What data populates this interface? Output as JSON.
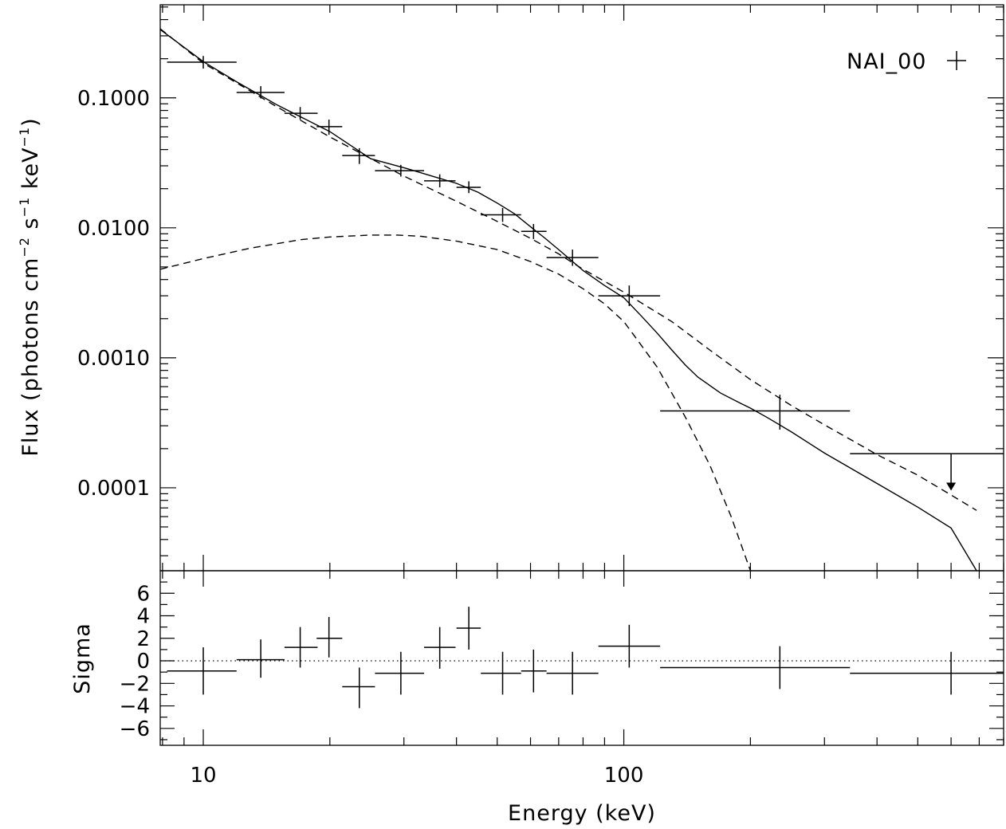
{
  "chart_data": [
    {
      "type": "scatter",
      "panel": "spectrum",
      "ylabel": {
        "pre": "Flux (photons cm",
        "exp1": "−2",
        "mid": " s",
        "exp2": "−1",
        "post": " keV",
        "exp3": "−1",
        "close": ")"
      },
      "xscale": "log",
      "yscale": "log",
      "xlim": [
        7.9,
        800
      ],
      "ylim": [
        2.3e-05,
        0.52
      ],
      "yticks": [
        {
          "value": 0.1,
          "label": "0.1000"
        },
        {
          "value": 0.01,
          "label": "0.0100"
        },
        {
          "value": 0.001,
          "label": "0.0010"
        },
        {
          "value": 0.0001,
          "label": "0.0001"
        }
      ],
      "legend": {
        "label": "NAI_00",
        "position": "top-right"
      },
      "series": [
        {
          "name": "NAI_00",
          "style": "crosses",
          "points": [
            {
              "x": 10.0,
              "xlo": 8.2,
              "xhi": 12.0,
              "y": 0.188,
              "ylo": 0.168,
              "yhi": 0.21
            },
            {
              "x": 13.7,
              "xlo": 12.0,
              "xhi": 15.6,
              "y": 0.11,
              "ylo": 0.099,
              "yhi": 0.123
            },
            {
              "x": 17.0,
              "xlo": 15.6,
              "xhi": 18.7,
              "y": 0.076,
              "ylo": 0.068,
              "yhi": 0.085
            },
            {
              "x": 19.9,
              "xlo": 18.6,
              "xhi": 21.4,
              "y": 0.06,
              "ylo": 0.052,
              "yhi": 0.068
            },
            {
              "x": 23.5,
              "xlo": 21.4,
              "xhi": 25.6,
              "y": 0.036,
              "ylo": 0.031,
              "yhi": 0.041
            },
            {
              "x": 29.5,
              "xlo": 25.6,
              "xhi": 33.5,
              "y": 0.0275,
              "ylo": 0.0248,
              "yhi": 0.0305
            },
            {
              "x": 36.5,
              "xlo": 33.5,
              "xhi": 39.8,
              "y": 0.023,
              "ylo": 0.0205,
              "yhi": 0.0258
            },
            {
              "x": 42.8,
              "xlo": 40.0,
              "xhi": 45.7,
              "y": 0.0205,
              "ylo": 0.0185,
              "yhi": 0.0228
            },
            {
              "x": 51.5,
              "xlo": 45.7,
              "xhi": 57.0,
              "y": 0.0126,
              "ylo": 0.0111,
              "yhi": 0.0142
            },
            {
              "x": 61.0,
              "xlo": 57.0,
              "xhi": 65.5,
              "y": 0.0094,
              "ylo": 0.0082,
              "yhi": 0.0107
            },
            {
              "x": 75.5,
              "xlo": 65.5,
              "xhi": 87.0,
              "y": 0.0059,
              "ylo": 0.0051,
              "yhi": 0.0068
            },
            {
              "x": 103.0,
              "xlo": 87.0,
              "xhi": 122.0,
              "y": 0.003,
              "ylo": 0.0025,
              "yhi": 0.0036
            },
            {
              "x": 235.0,
              "xlo": 122.0,
              "xhi": 345.0,
              "y": 0.00039,
              "ylo": 0.00028,
              "yhi": 0.00052
            },
            {
              "x": 600.0,
              "xlo": 345.0,
              "xhi": 800.0,
              "y": 0.000183,
              "upper_limit": true,
              "arrow_to": 9.5e-05
            }
          ]
        }
      ],
      "models": [
        {
          "style": "solid",
          "points": [
            [
              7.9,
              0.335
            ],
            [
              10,
              0.19
            ],
            [
              12,
              0.133
            ],
            [
              15,
              0.088
            ],
            [
              20,
              0.055
            ],
            [
              25,
              0.034
            ],
            [
              30,
              0.029
            ],
            [
              35,
              0.025
            ],
            [
              40,
              0.022
            ],
            [
              45,
              0.0188
            ],
            [
              50,
              0.0155
            ],
            [
              55,
              0.0128
            ],
            [
              60,
              0.0102
            ],
            [
              65,
              0.0083
            ],
            [
              70,
              0.0068
            ],
            [
              80,
              0.0047
            ],
            [
              90,
              0.0036
            ],
            [
              100,
              0.0029
            ],
            [
              110,
              0.0021
            ],
            [
              120,
              0.00155
            ],
            [
              130,
              0.00115
            ],
            [
              140,
              0.00088
            ],
            [
              150,
              0.00071
            ],
            [
              170,
              0.000535
            ],
            [
              190,
              0.000445
            ],
            [
              200,
              0.00041
            ],
            [
              220,
              0.000345
            ],
            [
              250,
              0.00027
            ],
            [
              300,
              0.000185
            ],
            [
              400,
              0.000108
            ],
            [
              500,
              7.1e-05
            ],
            [
              600,
              4.9e-05
            ],
            [
              690,
              2.3e-05
            ]
          ]
        },
        {
          "style": "dashed",
          "points": [
            [
              7.9,
              0.34
            ],
            [
              10,
              0.185
            ],
            [
              15,
              0.085
            ],
            [
              20,
              0.05
            ],
            [
              30,
              0.025
            ],
            [
              40,
              0.016
            ],
            [
              50,
              0.0112
            ],
            [
              60,
              0.0083
            ],
            [
              70,
              0.0063
            ],
            [
              80,
              0.0048
            ],
            [
              100,
              0.0032
            ],
            [
              130,
              0.0019
            ],
            [
              160,
              0.00115
            ],
            [
              200,
              0.00068
            ],
            [
              250,
              0.00043
            ],
            [
              300,
              0.000305
            ],
            [
              350,
              0.00023
            ],
            [
              400,
              0.00018
            ],
            [
              500,
              0.000125
            ],
            [
              600,
              8.8e-05
            ],
            [
              690,
              6.7e-05
            ]
          ]
        },
        {
          "style": "dashed",
          "points": [
            [
              7.9,
              0.0048
            ],
            [
              10,
              0.0058
            ],
            [
              13,
              0.007
            ],
            [
              17,
              0.0081
            ],
            [
              20,
              0.0085
            ],
            [
              25,
              0.0088
            ],
            [
              29,
              0.0088
            ],
            [
              33,
              0.0086
            ],
            [
              40,
              0.0079
            ],
            [
              50,
              0.0068
            ],
            [
              60,
              0.0055
            ],
            [
              70,
              0.0044
            ],
            [
              80,
              0.0034
            ],
            [
              90,
              0.0026
            ],
            [
              100,
              0.0019
            ],
            [
              110,
              0.00125
            ],
            [
              120,
              0.00085
            ],
            [
              140,
              0.00035
            ],
            [
              160,
              0.00015
            ],
            [
              180,
              6e-05
            ],
            [
              200,
              2.3e-05
            ]
          ]
        }
      ]
    },
    {
      "type": "scatter",
      "panel": "residuals",
      "xlabel": "Energy (keV)",
      "ylabel": "Sigma",
      "xscale": "log",
      "xlim": [
        7.9,
        800
      ],
      "ylim": [
        -7.5,
        8.0
      ],
      "xticks": [
        {
          "value": 10,
          "label": "10"
        },
        {
          "value": 100,
          "label": "100"
        }
      ],
      "yticks": [
        {
          "value": 6,
          "label": "6"
        },
        {
          "value": 4,
          "label": "4"
        },
        {
          "value": 2,
          "label": "2"
        },
        {
          "value": 0,
          "label": "0"
        },
        {
          "value": -2,
          "label": "−2"
        },
        {
          "value": -4,
          "label": "−4"
        },
        {
          "value": -6,
          "label": "−6"
        }
      ],
      "zero_line": "dotted",
      "series": [
        {
          "name": "NAI_00",
          "style": "crosses",
          "points": [
            {
              "x": 10.0,
              "xlo": 8.2,
              "xhi": 12.0,
              "y": -0.9,
              "ylo": -3.0,
              "yhi": 1.2
            },
            {
              "x": 13.7,
              "xlo": 12.0,
              "xhi": 15.6,
              "y": 0.1,
              "ylo": -1.5,
              "yhi": 1.9
            },
            {
              "x": 17.0,
              "xlo": 15.6,
              "xhi": 18.7,
              "y": 1.2,
              "ylo": -0.6,
              "yhi": 3.0
            },
            {
              "x": 19.9,
              "xlo": 18.6,
              "xhi": 21.4,
              "y": 2.0,
              "ylo": 0.3,
              "yhi": 3.9
            },
            {
              "x": 23.5,
              "xlo": 21.4,
              "xhi": 25.6,
              "y": -2.3,
              "ylo": -4.2,
              "yhi": -0.6
            },
            {
              "x": 29.5,
              "xlo": 25.6,
              "xhi": 33.5,
              "y": -1.1,
              "ylo": -3.0,
              "yhi": 0.8
            },
            {
              "x": 36.5,
              "xlo": 33.5,
              "xhi": 39.8,
              "y": 1.2,
              "ylo": -0.7,
              "yhi": 3.0
            },
            {
              "x": 42.8,
              "xlo": 40.0,
              "xhi": 45.7,
              "y": 2.9,
              "ylo": 1.0,
              "yhi": 4.8
            },
            {
              "x": 51.5,
              "xlo": 45.7,
              "xhi": 57.0,
              "y": -1.1,
              "ylo": -3.0,
              "yhi": 0.8
            },
            {
              "x": 61.0,
              "xlo": 57.0,
              "xhi": 65.5,
              "y": -0.9,
              "ylo": -2.8,
              "yhi": 1.0
            },
            {
              "x": 75.5,
              "xlo": 65.5,
              "xhi": 87.0,
              "y": -1.1,
              "ylo": -3.0,
              "yhi": 0.8
            },
            {
              "x": 103.0,
              "xlo": 87.0,
              "xhi": 122.0,
              "y": 1.3,
              "ylo": -0.6,
              "yhi": 3.2
            },
            {
              "x": 235.0,
              "xlo": 122.0,
              "xhi": 345.0,
              "y": -0.6,
              "ylo": -2.5,
              "yhi": 1.3
            },
            {
              "x": 600.0,
              "xlo": 345.0,
              "xhi": 800.0,
              "y": -1.1,
              "ylo": -3.0,
              "yhi": 0.8
            }
          ]
        }
      ]
    }
  ]
}
